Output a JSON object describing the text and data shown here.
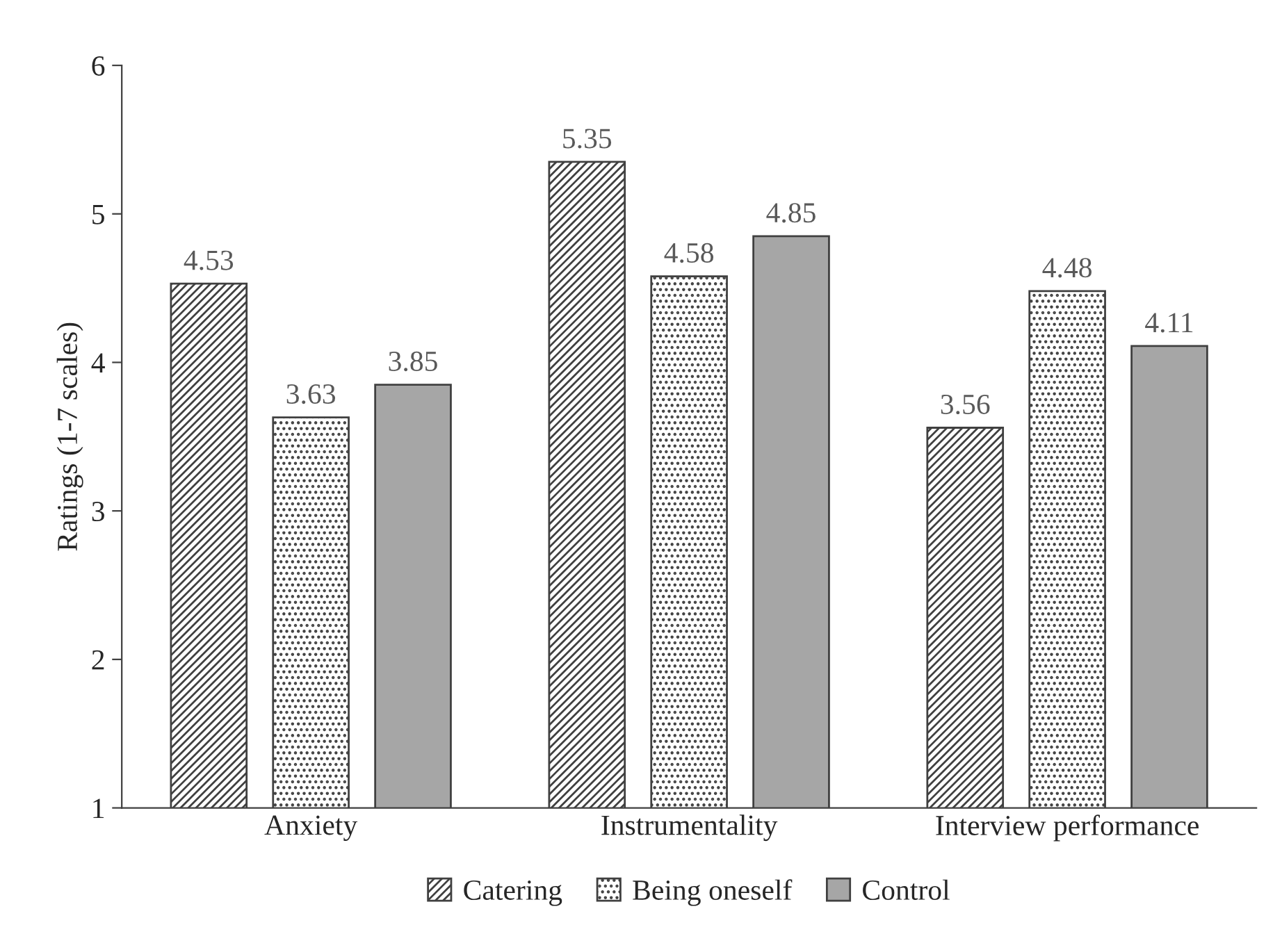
{
  "chart_data": {
    "type": "bar",
    "ylabel": "Ratings (1-7 scales)",
    "categories": [
      "Anxiety",
      "Instrumentality",
      "Interview performance"
    ],
    "series": [
      {
        "name": "Catering",
        "color": "#404040",
        "values": [
          4.53,
          5.35,
          3.56
        ]
      },
      {
        "name": "Being oneself",
        "color": "#404040",
        "values": [
          3.63,
          4.58,
          4.48
        ]
      },
      {
        "name": "Control",
        "color": "#a6a6a6",
        "values": [
          3.85,
          4.85,
          4.11
        ]
      }
    ],
    "ylim": [
      1,
      6
    ],
    "yticks": [
      1,
      2,
      3,
      4,
      5,
      6
    ],
    "data_labels": true,
    "grid": false,
    "legend": "bottom"
  }
}
